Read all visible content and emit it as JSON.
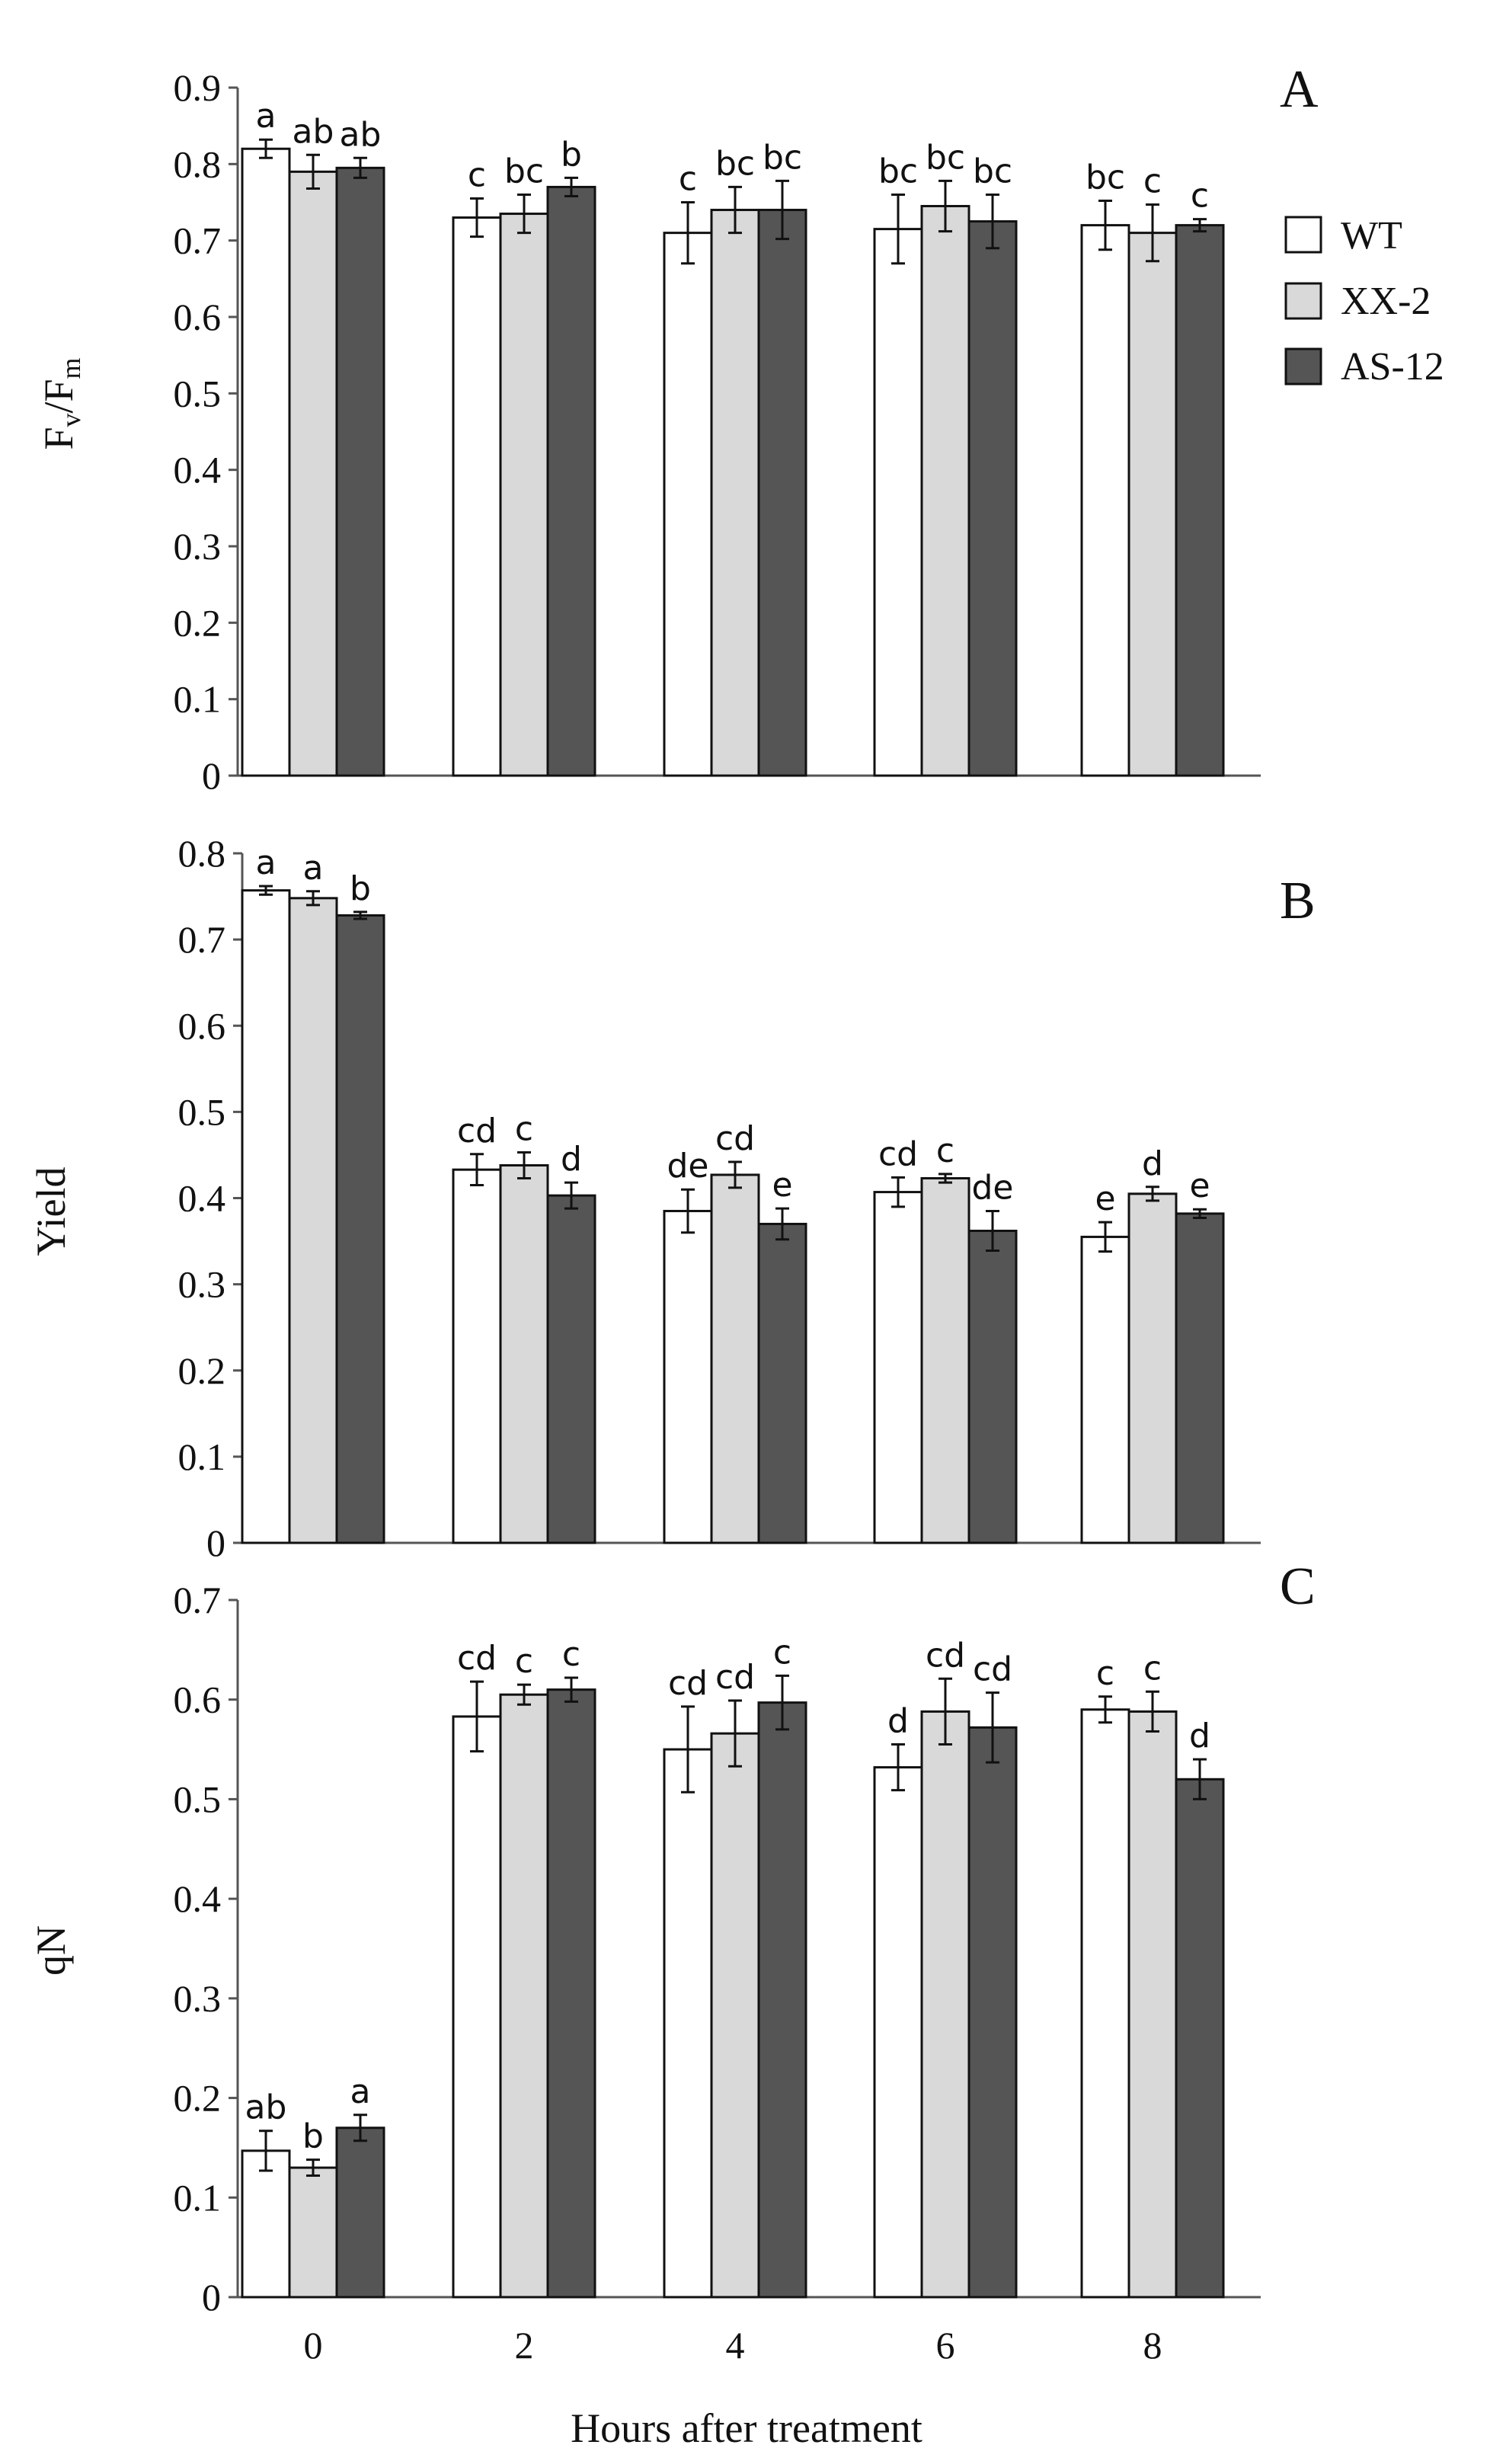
{
  "legend": {
    "items": [
      {
        "label": "WT",
        "color": "#ffffff"
      },
      {
        "label": "XX-2",
        "color": "#d9d9d9"
      },
      {
        "label": "AS-12",
        "color": "#555555"
      }
    ]
  },
  "xlabel": "Hours after treatment",
  "chart_data": [
    {
      "type": "bar",
      "panel": "A",
      "title": "",
      "ylabel": "Fv/Fm",
      "ylabel_main": "F",
      "ylabel_sub1": "v",
      "ylabel_mid": "/F",
      "ylabel_sub2": "m",
      "ylim": [
        0,
        0.9
      ],
      "yticks": [
        0,
        0.1,
        0.2,
        0.3,
        0.4,
        0.5,
        0.6,
        0.7,
        0.8,
        0.9
      ],
      "ytick_labels": [
        "0",
        "0.1",
        "0.2",
        "0.3",
        "0.4",
        "0.5",
        "0.6",
        "0.7",
        "0.8",
        "0.9"
      ],
      "categories": [
        "0",
        "2",
        "4",
        "6",
        "8"
      ],
      "series": [
        {
          "name": "WT",
          "values": [
            0.82,
            0.73,
            0.71,
            0.715,
            0.72
          ],
          "errors": [
            0.012,
            0.025,
            0.04,
            0.045,
            0.032
          ],
          "labels": [
            "a",
            "c",
            "c",
            "bc",
            "bc"
          ]
        },
        {
          "name": "XX-2",
          "values": [
            0.79,
            0.735,
            0.74,
            0.745,
            0.71
          ],
          "errors": [
            0.022,
            0.025,
            0.03,
            0.033,
            0.037
          ],
          "labels": [
            "ab",
            "bc",
            "bc",
            "bc",
            "c"
          ]
        },
        {
          "name": "AS-12",
          "values": [
            0.795,
            0.77,
            0.74,
            0.725,
            0.72
          ],
          "errors": [
            0.013,
            0.012,
            0.038,
            0.035,
            0.008
          ],
          "labels": [
            "ab",
            "b",
            "bc",
            "bc",
            "c"
          ]
        }
      ]
    },
    {
      "type": "bar",
      "panel": "B",
      "title": "",
      "ylabel": "Yield",
      "ylim": [
        0,
        0.8
      ],
      "yticks": [
        0,
        0.1,
        0.2,
        0.3,
        0.4,
        0.5,
        0.6,
        0.7,
        0.8
      ],
      "ytick_labels": [
        "0",
        "0.1",
        "0.2",
        "0.3",
        "0.4",
        "0.5",
        "0.6",
        "0.7",
        "0.8"
      ],
      "categories": [
        "0",
        "2",
        "4",
        "6",
        "8"
      ],
      "series": [
        {
          "name": "WT",
          "values": [
            0.757,
            0.433,
            0.385,
            0.407,
            0.355
          ],
          "errors": [
            0.005,
            0.018,
            0.025,
            0.017,
            0.017
          ],
          "labels": [
            "a",
            "cd",
            "de",
            "cd",
            "e"
          ]
        },
        {
          "name": "XX-2",
          "values": [
            0.748,
            0.438,
            0.427,
            0.423,
            0.405
          ],
          "errors": [
            0.008,
            0.015,
            0.015,
            0.005,
            0.008
          ],
          "labels": [
            "a",
            "c",
            "cd",
            "c",
            "d"
          ]
        },
        {
          "name": "AS-12",
          "values": [
            0.728,
            0.403,
            0.37,
            0.362,
            0.382
          ],
          "errors": [
            0.004,
            0.015,
            0.018,
            0.023,
            0.005
          ],
          "labels": [
            "b",
            "d",
            "e",
            "de",
            "e"
          ]
        }
      ]
    },
    {
      "type": "bar",
      "panel": "C",
      "title": "",
      "ylabel": "qN",
      "ylim": [
        0,
        0.7
      ],
      "yticks": [
        0,
        0.1,
        0.2,
        0.3,
        0.4,
        0.5,
        0.6,
        0.7
      ],
      "ytick_labels": [
        "0",
        "0.1",
        "0.2",
        "0.3",
        "0.4",
        "0.5",
        "0.6",
        "0.7"
      ],
      "categories": [
        "0",
        "2",
        "4",
        "6",
        "8"
      ],
      "xtick_labels": [
        "0",
        "2",
        "4",
        "6",
        "8"
      ],
      "series": [
        {
          "name": "WT",
          "values": [
            0.147,
            0.583,
            0.55,
            0.532,
            0.59
          ],
          "errors": [
            0.02,
            0.035,
            0.043,
            0.023,
            0.013
          ],
          "labels": [
            "ab",
            "cd",
            "cd",
            "d",
            "c"
          ]
        },
        {
          "name": "XX-2",
          "values": [
            0.13,
            0.605,
            0.566,
            0.588,
            0.588
          ],
          "errors": [
            0.008,
            0.01,
            0.033,
            0.033,
            0.02
          ],
          "labels": [
            "b",
            "c",
            "cd",
            "cd",
            "c"
          ]
        },
        {
          "name": "AS-12",
          "values": [
            0.17,
            0.61,
            0.597,
            0.572,
            0.52
          ],
          "errors": [
            0.013,
            0.012,
            0.027,
            0.035,
            0.02
          ],
          "labels": [
            "a",
            "c",
            "c",
            "cd",
            "d"
          ]
        }
      ]
    }
  ]
}
